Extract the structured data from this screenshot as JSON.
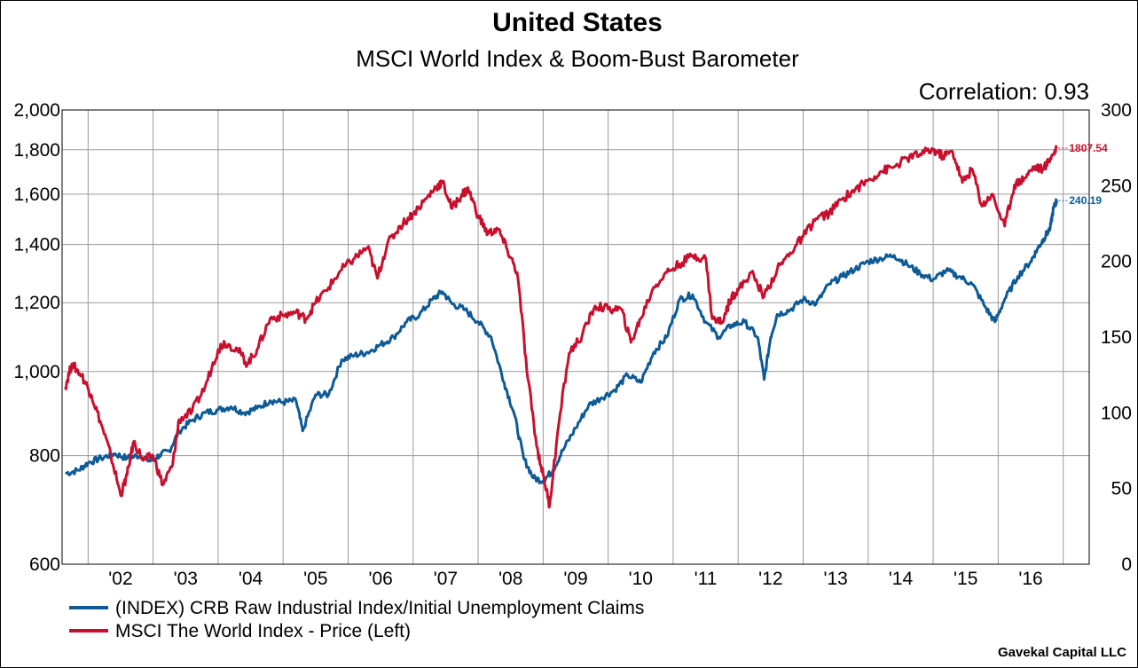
{
  "chart_data": {
    "type": "line",
    "title": "United States",
    "subtitle": "MSCI World Index & Boom-Bust Barometer",
    "annotation": "Correlation: 0.93",
    "source": "Gavekal Capital LLC",
    "x_tick_labels": [
      "'02",
      "'03",
      "'04",
      "'05",
      "'06",
      "'07",
      "'08",
      "'09",
      "'10",
      "'11",
      "'12",
      "'13",
      "'14",
      "'15",
      "'16"
    ],
    "x_range": [
      2001.6,
      2017.4
    ],
    "y_left": {
      "scale": "log",
      "range": [
        600,
        2000
      ],
      "tick_values": [
        600,
        800,
        1000,
        1200,
        1400,
        1600,
        1800,
        2000
      ],
      "tick_labels": [
        "600",
        "800",
        "1,000",
        "1,200",
        "1,400",
        "1,600",
        "1,800",
        "2,000"
      ]
    },
    "y_right": {
      "scale": "linear",
      "range": [
        0,
        300
      ],
      "tick_values": [
        0,
        50,
        100,
        150,
        200,
        250,
        300
      ],
      "tick_labels": [
        "0",
        "50",
        "100",
        "150",
        "200",
        "250",
        "300"
      ]
    },
    "grid": true,
    "legend_position": "bottom-left",
    "series": [
      {
        "name": "(INDEX) CRB Raw Industrial Index/Initial Unemployment Claims",
        "axis": "right",
        "color": "#0d5a96",
        "end_label": "240.19",
        "x": [
          2001.65,
          2001.85,
          2002.0,
          2002.2,
          2002.4,
          2002.6,
          2002.8,
          2002.95,
          2003.1,
          2003.25,
          2003.4,
          2003.6,
          2003.8,
          2004.0,
          2004.2,
          2004.4,
          2004.6,
          2004.8,
          2005.0,
          2005.2,
          2005.3,
          2005.5,
          2005.7,
          2005.9,
          2006.1,
          2006.3,
          2006.5,
          2006.7,
          2006.9,
          2007.1,
          2007.3,
          2007.45,
          2007.6,
          2007.8,
          2008.0,
          2008.2,
          2008.4,
          2008.55,
          2008.7,
          2008.85,
          2009.0,
          2009.15,
          2009.3,
          2009.5,
          2009.7,
          2009.9,
          2010.1,
          2010.3,
          2010.5,
          2010.7,
          2010.9,
          2011.1,
          2011.3,
          2011.5,
          2011.7,
          2011.9,
          2012.1,
          2012.3,
          2012.4,
          2012.5,
          2012.6,
          2012.8,
          2013.0,
          2013.2,
          2013.4,
          2013.6,
          2013.8,
          2014.0,
          2014.2,
          2014.4,
          2014.6,
          2014.8,
          2015.0,
          2015.2,
          2015.4,
          2015.6,
          2015.8,
          2015.95,
          2016.1,
          2016.3,
          2016.5,
          2016.6,
          2016.7,
          2016.8,
          2016.85,
          2016.9
        ],
        "values": [
          60,
          62,
          67,
          70,
          73,
          70,
          72,
          68,
          72,
          75,
          88,
          95,
          100,
          102,
          104,
          100,
          103,
          108,
          107,
          108,
          88,
          112,
          112,
          135,
          138,
          140,
          145,
          150,
          160,
          165,
          175,
          180,
          172,
          168,
          160,
          150,
          120,
          100,
          70,
          57,
          55,
          62,
          75,
          90,
          105,
          110,
          115,
          125,
          120,
          140,
          150,
          175,
          178,
          160,
          150,
          158,
          160,
          150,
          122,
          150,
          165,
          168,
          175,
          172,
          185,
          190,
          195,
          200,
          202,
          204,
          198,
          192,
          188,
          194,
          190,
          185,
          170,
          160,
          175,
          190,
          200,
          208,
          215,
          222,
          235,
          240.19
        ]
      },
      {
        "name": "MSCI The World Index - Price  (Left)",
        "axis": "left",
        "color": "#c8102e",
        "end_label": "1807.54",
        "x": [
          2001.65,
          2001.75,
          2001.9,
          2002.05,
          2002.2,
          2002.35,
          2002.5,
          2002.6,
          2002.7,
          2002.85,
          2003.0,
          2003.15,
          2003.3,
          2003.4,
          2003.6,
          2003.8,
          2004.0,
          2004.1,
          2004.3,
          2004.45,
          2004.6,
          2004.8,
          2005.0,
          2005.2,
          2005.35,
          2005.5,
          2005.7,
          2005.9,
          2006.1,
          2006.3,
          2006.45,
          2006.6,
          2006.8,
          2007.0,
          2007.2,
          2007.35,
          2007.45,
          2007.6,
          2007.75,
          2007.85,
          2008.0,
          2008.15,
          2008.3,
          2008.45,
          2008.6,
          2008.75,
          2008.9,
          2009.0,
          2009.1,
          2009.2,
          2009.4,
          2009.6,
          2009.8,
          2010.0,
          2010.2,
          2010.35,
          2010.5,
          2010.7,
          2010.9,
          2011.1,
          2011.3,
          2011.5,
          2011.6,
          2011.75,
          2011.9,
          2012.0,
          2012.2,
          2012.4,
          2012.6,
          2012.8,
          2013.0,
          2013.2,
          2013.4,
          2013.6,
          2013.8,
          2014.0,
          2014.2,
          2014.4,
          2014.6,
          2014.8,
          2015.0,
          2015.15,
          2015.3,
          2015.45,
          2015.6,
          2015.75,
          2015.9,
          2016.1,
          2016.25,
          2016.4,
          2016.55,
          2016.7,
          2016.8,
          2016.9
        ],
        "values": [
          960,
          1020,
          990,
          940,
          870,
          800,
          720,
          760,
          830,
          790,
          800,
          740,
          780,
          880,
          900,
          960,
          1060,
          1080,
          1060,
          1020,
          1060,
          1150,
          1160,
          1170,
          1150,
          1200,
          1250,
          1310,
          1350,
          1390,
          1280,
          1400,
          1470,
          1520,
          1580,
          1630,
          1650,
          1540,
          1600,
          1620,
          1510,
          1440,
          1460,
          1380,
          1300,
          1000,
          820,
          760,
          700,
          820,
          1050,
          1100,
          1190,
          1180,
          1180,
          1080,
          1150,
          1250,
          1300,
          1330,
          1360,
          1350,
          1150,
          1140,
          1220,
          1240,
          1300,
          1220,
          1310,
          1370,
          1430,
          1500,
          1520,
          1580,
          1620,
          1660,
          1700,
          1720,
          1760,
          1780,
          1800,
          1770,
          1790,
          1650,
          1710,
          1550,
          1600,
          1470,
          1640,
          1670,
          1720,
          1710,
          1760,
          1807.54
        ]
      }
    ]
  }
}
